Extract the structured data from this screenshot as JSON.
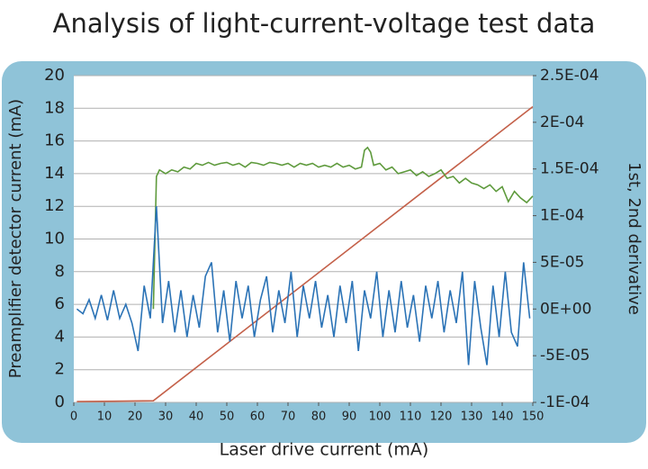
{
  "chart_data": {
    "type": "line",
    "title": "Analysis of light-current-voltage test data",
    "xlabel": "Laser drive current (mA)",
    "ylabel": "Preamplifier detector current (mA)",
    "y2label": "1st, 2nd derivative",
    "xlim": [
      0,
      150
    ],
    "xticks": [
      0,
      10,
      20,
      30,
      40,
      50,
      60,
      70,
      80,
      90,
      100,
      110,
      120,
      130,
      140,
      150
    ],
    "ylim": [
      0,
      20
    ],
    "yticks": [
      0,
      2,
      4,
      6,
      8,
      10,
      12,
      14,
      16,
      18,
      20
    ],
    "y2lim": [
      -0.0001,
      0.00025
    ],
    "y2ticks": [
      {
        "value": -0.0001,
        "label": "-1E-04"
      },
      {
        "value": -5e-05,
        "label": "-5E-05"
      },
      {
        "value": 0,
        "label": "0E+00"
      },
      {
        "value": 5e-05,
        "label": "5E-05"
      },
      {
        "value": 0.0001,
        "label": "1E-04"
      },
      {
        "value": 0.00015,
        "label": "1.5E-04"
      },
      {
        "value": 0.0002,
        "label": "2E-04"
      },
      {
        "value": 0.00025,
        "label": "2.5E-04"
      }
    ],
    "grid": true,
    "series": [
      {
        "color": "#c4614a",
        "x": [
          1,
          26,
          150
        ],
        "values": [
          0.05,
          0.1,
          18.1
        ]
      },
      {
        "color": "#5e9a3c",
        "axis": "y2",
        "x": [
          26,
          27,
          28,
          30,
          32,
          34,
          36,
          38,
          40,
          42,
          44,
          46,
          48,
          50,
          52,
          54,
          56,
          58,
          60,
          62,
          64,
          66,
          68,
          70,
          72,
          74,
          76,
          78,
          80,
          82,
          84,
          86,
          88,
          90,
          92,
          94,
          95,
          96,
          97,
          98,
          100,
          102,
          104,
          106,
          108,
          110,
          112,
          114,
          116,
          118,
          120,
          122,
          124,
          126,
          128,
          130,
          132,
          134,
          136,
          138,
          140,
          142,
          144,
          146,
          148,
          150
        ],
        "values": [
          0,
          0.000142,
          0.000149,
          0.000145,
          0.000149,
          0.000147,
          0.000152,
          0.00015,
          0.000156,
          0.000154,
          0.000157,
          0.000154,
          0.000156,
          0.000157,
          0.000154,
          0.000156,
          0.000152,
          0.000157,
          0.000156,
          0.000154,
          0.000157,
          0.000156,
          0.000154,
          0.000156,
          0.000152,
          0.000156,
          0.000154,
          0.000156,
          0.000152,
          0.000154,
          0.000152,
          0.000156,
          0.000152,
          0.000154,
          0.00015,
          0.000152,
          0.00017,
          0.000173,
          0.000168,
          0.000154,
          0.000156,
          0.000149,
          0.000152,
          0.000145,
          0.000147,
          0.000149,
          0.000143,
          0.000147,
          0.000142,
          0.000145,
          0.000149,
          0.00014,
          0.000142,
          0.000135,
          0.00014,
          0.000135,
          0.000133,
          0.000129,
          0.000133,
          0.000126,
          0.000131,
          0.000115,
          0.000126,
          0.000119,
          0.000114,
          0.000121
        ]
      },
      {
        "color": "#2b73b6",
        "axis": "y2",
        "x": [
          1,
          3,
          5,
          7,
          9,
          11,
          13,
          15,
          17,
          19,
          21,
          23,
          25,
          27,
          29,
          31,
          33,
          35,
          37,
          39,
          41,
          43,
          45,
          47,
          49,
          51,
          53,
          55,
          57,
          59,
          61,
          63,
          65,
          67,
          69,
          71,
          73,
          75,
          77,
          79,
          81,
          83,
          85,
          87,
          89,
          91,
          93,
          95,
          97,
          99,
          101,
          103,
          105,
          107,
          109,
          111,
          113,
          115,
          117,
          119,
          121,
          123,
          125,
          127,
          129,
          131,
          133,
          135,
          137,
          139,
          141,
          143,
          145,
          147,
          149
        ],
        "values": [
          0,
          -5e-06,
          1e-05,
          -1e-05,
          1.5e-05,
          -1.2e-05,
          2e-05,
          -1e-05,
          5e-06,
          -1.5e-05,
          -4.5e-05,
          2.5e-05,
          -1e-05,
          0.00011,
          -1.5e-05,
          3e-05,
          -2.5e-05,
          2e-05,
          -3e-05,
          1.5e-05,
          -2e-05,
          3.5e-05,
          5e-05,
          -2.5e-05,
          2e-05,
          -3.5e-05,
          3e-05,
          -1e-05,
          2.5e-05,
          -3e-05,
          1e-05,
          3.5e-05,
          -2.5e-05,
          2e-05,
          -1.5e-05,
          4e-05,
          -3e-05,
          2.5e-05,
          -1e-05,
          3e-05,
          -2e-05,
          1.5e-05,
          -3e-05,
          2.5e-05,
          -1.5e-05,
          3e-05,
          -4.5e-05,
          2e-05,
          -1e-05,
          4e-05,
          -3e-05,
          2e-05,
          -2.5e-05,
          3e-05,
          -2e-05,
          1.5e-05,
          -3.5e-05,
          2.5e-05,
          -1e-05,
          3e-05,
          -2.5e-05,
          2e-05,
          -1.5e-05,
          4e-05,
          -6e-05,
          3e-05,
          -2e-05,
          -6e-05,
          2.5e-05,
          -3e-05,
          4e-05,
          -2.5e-05,
          -4e-05,
          5e-05,
          -1e-05
        ]
      }
    ]
  }
}
